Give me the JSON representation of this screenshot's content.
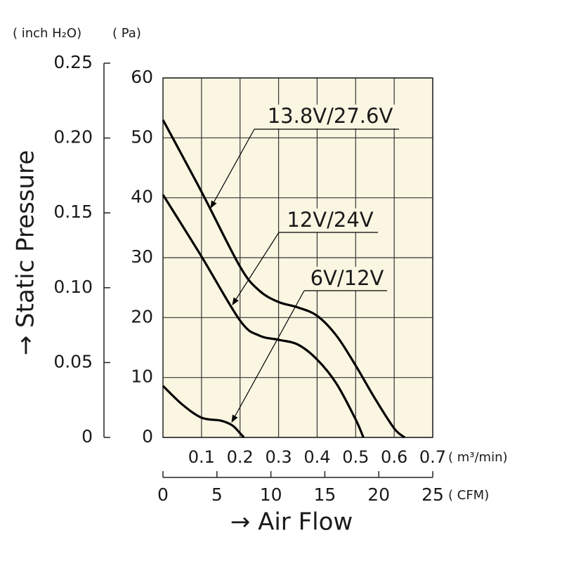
{
  "chart_data": {
    "type": "line",
    "y_label": "→ Static Pressure",
    "x_label": "→ Air Flow",
    "y_unit": "( Pa)",
    "y2_unit": "( inch H₂O)",
    "x_unit": "( m³/min)",
    "x2_unit": "( CFM)",
    "xlim": [
      0,
      0.7
    ],
    "xticks": [
      0.1,
      0.2,
      0.3,
      0.4,
      0.5,
      0.6,
      0.7
    ],
    "x2lim": [
      0,
      25
    ],
    "x2ticks": [
      0,
      5,
      10,
      15,
      20,
      25
    ],
    "ylim": [
      0,
      60
    ],
    "yticks": [
      0,
      10,
      20,
      30,
      40,
      50,
      60
    ],
    "y2lim": [
      0,
      0.25
    ],
    "y2ticks": [
      0,
      0.05,
      {
        "value": 0.1,
        "label": "0.10"
      },
      0.15,
      {
        "value": 0.2,
        "label": "0.20"
      },
      0.25
    ],
    "grid": true,
    "series": [
      {
        "name": "13.8V/27.6V",
        "color": "#000000",
        "x": [
          0,
          0.1,
          0.2,
          0.25,
          0.3,
          0.35,
          0.4,
          0.45,
          0.5,
          0.55,
          0.6,
          0.627
        ],
        "values": [
          53,
          41,
          28.5,
          24.5,
          22.6,
          21.7,
          20.3,
          17,
          12,
          6.5,
          1.5,
          0
        ]
      },
      {
        "name": "12V/24V",
        "color": "#000000",
        "x": [
          0,
          0.1,
          0.2,
          0.25,
          0.3,
          0.35,
          0.4,
          0.45,
          0.5,
          0.52
        ],
        "values": [
          40.5,
          30.2,
          19.5,
          17,
          16.3,
          15.5,
          13,
          9,
          3,
          0
        ]
      },
      {
        "name": "6V/12V",
        "color": "#000000",
        "x": [
          0,
          0.05,
          0.1,
          0.15,
          0.18,
          0.2,
          0.21
        ],
        "values": [
          8.6,
          5.5,
          3.3,
          2.8,
          2,
          0.7,
          0
        ]
      }
    ]
  }
}
